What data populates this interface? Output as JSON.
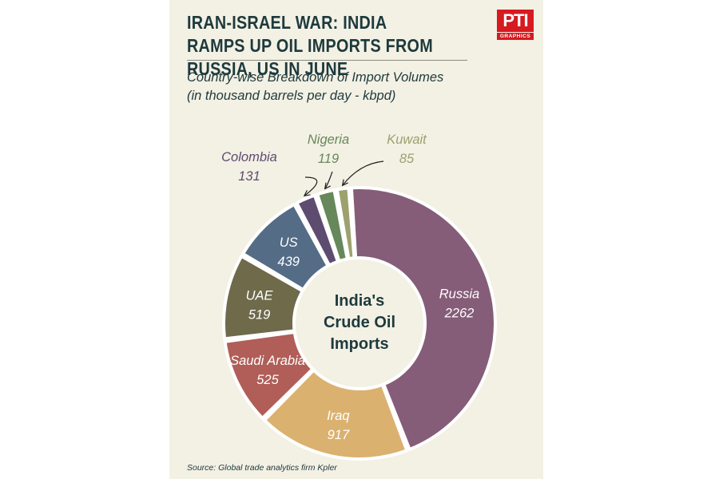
{
  "header": {
    "title": "IRAN-ISRAEL WAR: INDIA RAMPS UP OIL IMPORTS FROM RUSSIA, US IN JUNE",
    "subtitle": "Country-wise Breakdown of Import Volumes",
    "unit_note": "(in thousand barrels per day - kbpd)",
    "logo_main": "PTI",
    "logo_sub": "GRAPHICS"
  },
  "footer": {
    "source": "Source: Global trade analytics firm Kpler"
  },
  "chart_data": {
    "type": "pie",
    "style": "donut",
    "center_label": [
      "India's",
      "Crude Oil",
      "Imports"
    ],
    "categories": [
      "Russia",
      "Iraq",
      "Saudi Arabia",
      "UAE",
      "US",
      "Colombia",
      "Nigeria",
      "Kuwait"
    ],
    "values": [
      2262,
      917,
      525,
      519,
      439,
      131,
      119,
      85
    ],
    "colors": [
      "#855d78",
      "#dbb170",
      "#b05e57",
      "#6e6a4a",
      "#546c86",
      "#5e4b70",
      "#67885a",
      "#9da16e"
    ],
    "label_colors": {
      "Colombia": "#5e4b70",
      "Nigeria": "#67885a",
      "Kuwait": "#9da16e"
    },
    "external_labels": [
      "Colombia",
      "Nigeria",
      "Kuwait"
    ],
    "legend": "none"
  }
}
